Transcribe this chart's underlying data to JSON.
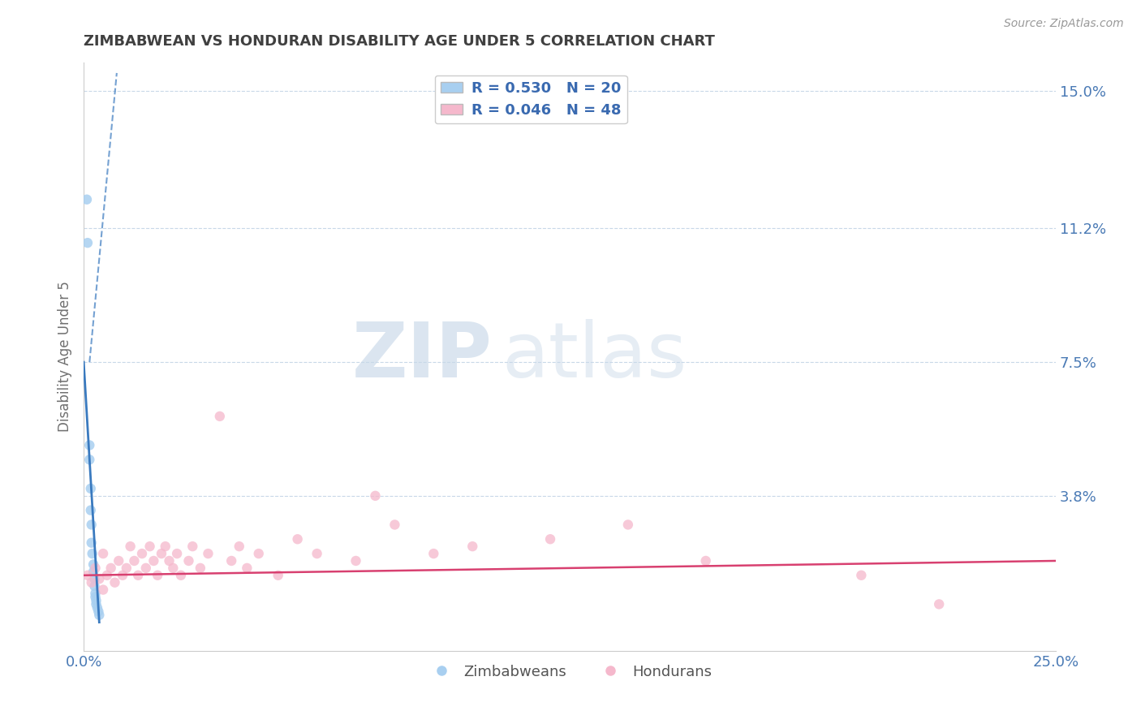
{
  "title": "ZIMBABWEAN VS HONDURAN DISABILITY AGE UNDER 5 CORRELATION CHART",
  "source": "Source: ZipAtlas.com",
  "ylabel": "Disability Age Under 5",
  "xlim": [
    0.0,
    0.25
  ],
  "ylim": [
    -0.005,
    0.158
  ],
  "ytick_vals": [
    0.038,
    0.075,
    0.112,
    0.15
  ],
  "ytick_labels": [
    "3.8%",
    "7.5%",
    "11.2%",
    "15.0%"
  ],
  "xtick_vals": [
    0.0,
    0.25
  ],
  "xtick_labels": [
    "0.0%",
    "25.0%"
  ],
  "legend_r_entries": [
    {
      "label": "R = 0.530   N = 20",
      "color": "#aed4f5"
    },
    {
      "label": "R = 0.046   N = 48",
      "color": "#f5b8cc"
    }
  ],
  "legend_labels": [
    "Zimbabweans",
    "Hondurans"
  ],
  "zimbabwe_scatter": [
    [
      0.0008,
      0.12
    ],
    [
      0.001,
      0.108
    ],
    [
      0.0015,
      0.052
    ],
    [
      0.0015,
      0.048
    ],
    [
      0.0018,
      0.04
    ],
    [
      0.0018,
      0.034
    ],
    [
      0.002,
      0.03
    ],
    [
      0.002,
      0.025
    ],
    [
      0.0022,
      0.022
    ],
    [
      0.0025,
      0.019
    ],
    [
      0.0025,
      0.017
    ],
    [
      0.0028,
      0.015
    ],
    [
      0.0028,
      0.013
    ],
    [
      0.003,
      0.011
    ],
    [
      0.003,
      0.01
    ],
    [
      0.0032,
      0.009
    ],
    [
      0.0032,
      0.008
    ],
    [
      0.0035,
      0.007
    ],
    [
      0.0038,
      0.006
    ],
    [
      0.004,
      0.005
    ]
  ],
  "honduras_scatter": [
    [
      0.001,
      0.016
    ],
    [
      0.002,
      0.014
    ],
    [
      0.003,
      0.018
    ],
    [
      0.004,
      0.015
    ],
    [
      0.005,
      0.012
    ],
    [
      0.005,
      0.022
    ],
    [
      0.006,
      0.016
    ],
    [
      0.007,
      0.018
    ],
    [
      0.008,
      0.014
    ],
    [
      0.009,
      0.02
    ],
    [
      0.01,
      0.016
    ],
    [
      0.011,
      0.018
    ],
    [
      0.012,
      0.024
    ],
    [
      0.013,
      0.02
    ],
    [
      0.014,
      0.016
    ],
    [
      0.015,
      0.022
    ],
    [
      0.016,
      0.018
    ],
    [
      0.017,
      0.024
    ],
    [
      0.018,
      0.02
    ],
    [
      0.019,
      0.016
    ],
    [
      0.02,
      0.022
    ],
    [
      0.021,
      0.024
    ],
    [
      0.022,
      0.02
    ],
    [
      0.023,
      0.018
    ],
    [
      0.024,
      0.022
    ],
    [
      0.025,
      0.016
    ],
    [
      0.027,
      0.02
    ],
    [
      0.028,
      0.024
    ],
    [
      0.03,
      0.018
    ],
    [
      0.032,
      0.022
    ],
    [
      0.035,
      0.06
    ],
    [
      0.038,
      0.02
    ],
    [
      0.04,
      0.024
    ],
    [
      0.042,
      0.018
    ],
    [
      0.045,
      0.022
    ],
    [
      0.05,
      0.016
    ],
    [
      0.055,
      0.026
    ],
    [
      0.06,
      0.022
    ],
    [
      0.07,
      0.02
    ],
    [
      0.075,
      0.038
    ],
    [
      0.08,
      0.03
    ],
    [
      0.09,
      0.022
    ],
    [
      0.1,
      0.024
    ],
    [
      0.12,
      0.026
    ],
    [
      0.14,
      0.03
    ],
    [
      0.16,
      0.02
    ],
    [
      0.2,
      0.016
    ],
    [
      0.22,
      0.008
    ]
  ],
  "zim_trendline_solid": [
    [
      0.0,
      0.075
    ],
    [
      0.004,
      0.003
    ]
  ],
  "zim_trendline_dashed": [
    [
      0.0015,
      0.075
    ],
    [
      0.0085,
      0.155
    ]
  ],
  "hon_trendline": [
    [
      0.0,
      0.016
    ],
    [
      0.25,
      0.02
    ]
  ],
  "zim_color": "#a8cff0",
  "hon_color": "#f5b8cc",
  "zim_line_color": "#3a7abf",
  "hon_line_color": "#d84070",
  "background_color": "#ffffff",
  "watermark_zip": "ZIP",
  "watermark_atlas": "atlas",
  "grid_color": "#c8d8e8",
  "title_color": "#404040",
  "axis_label_color": "#707070",
  "tick_color": "#4a7ab5",
  "source_color": "#999999"
}
